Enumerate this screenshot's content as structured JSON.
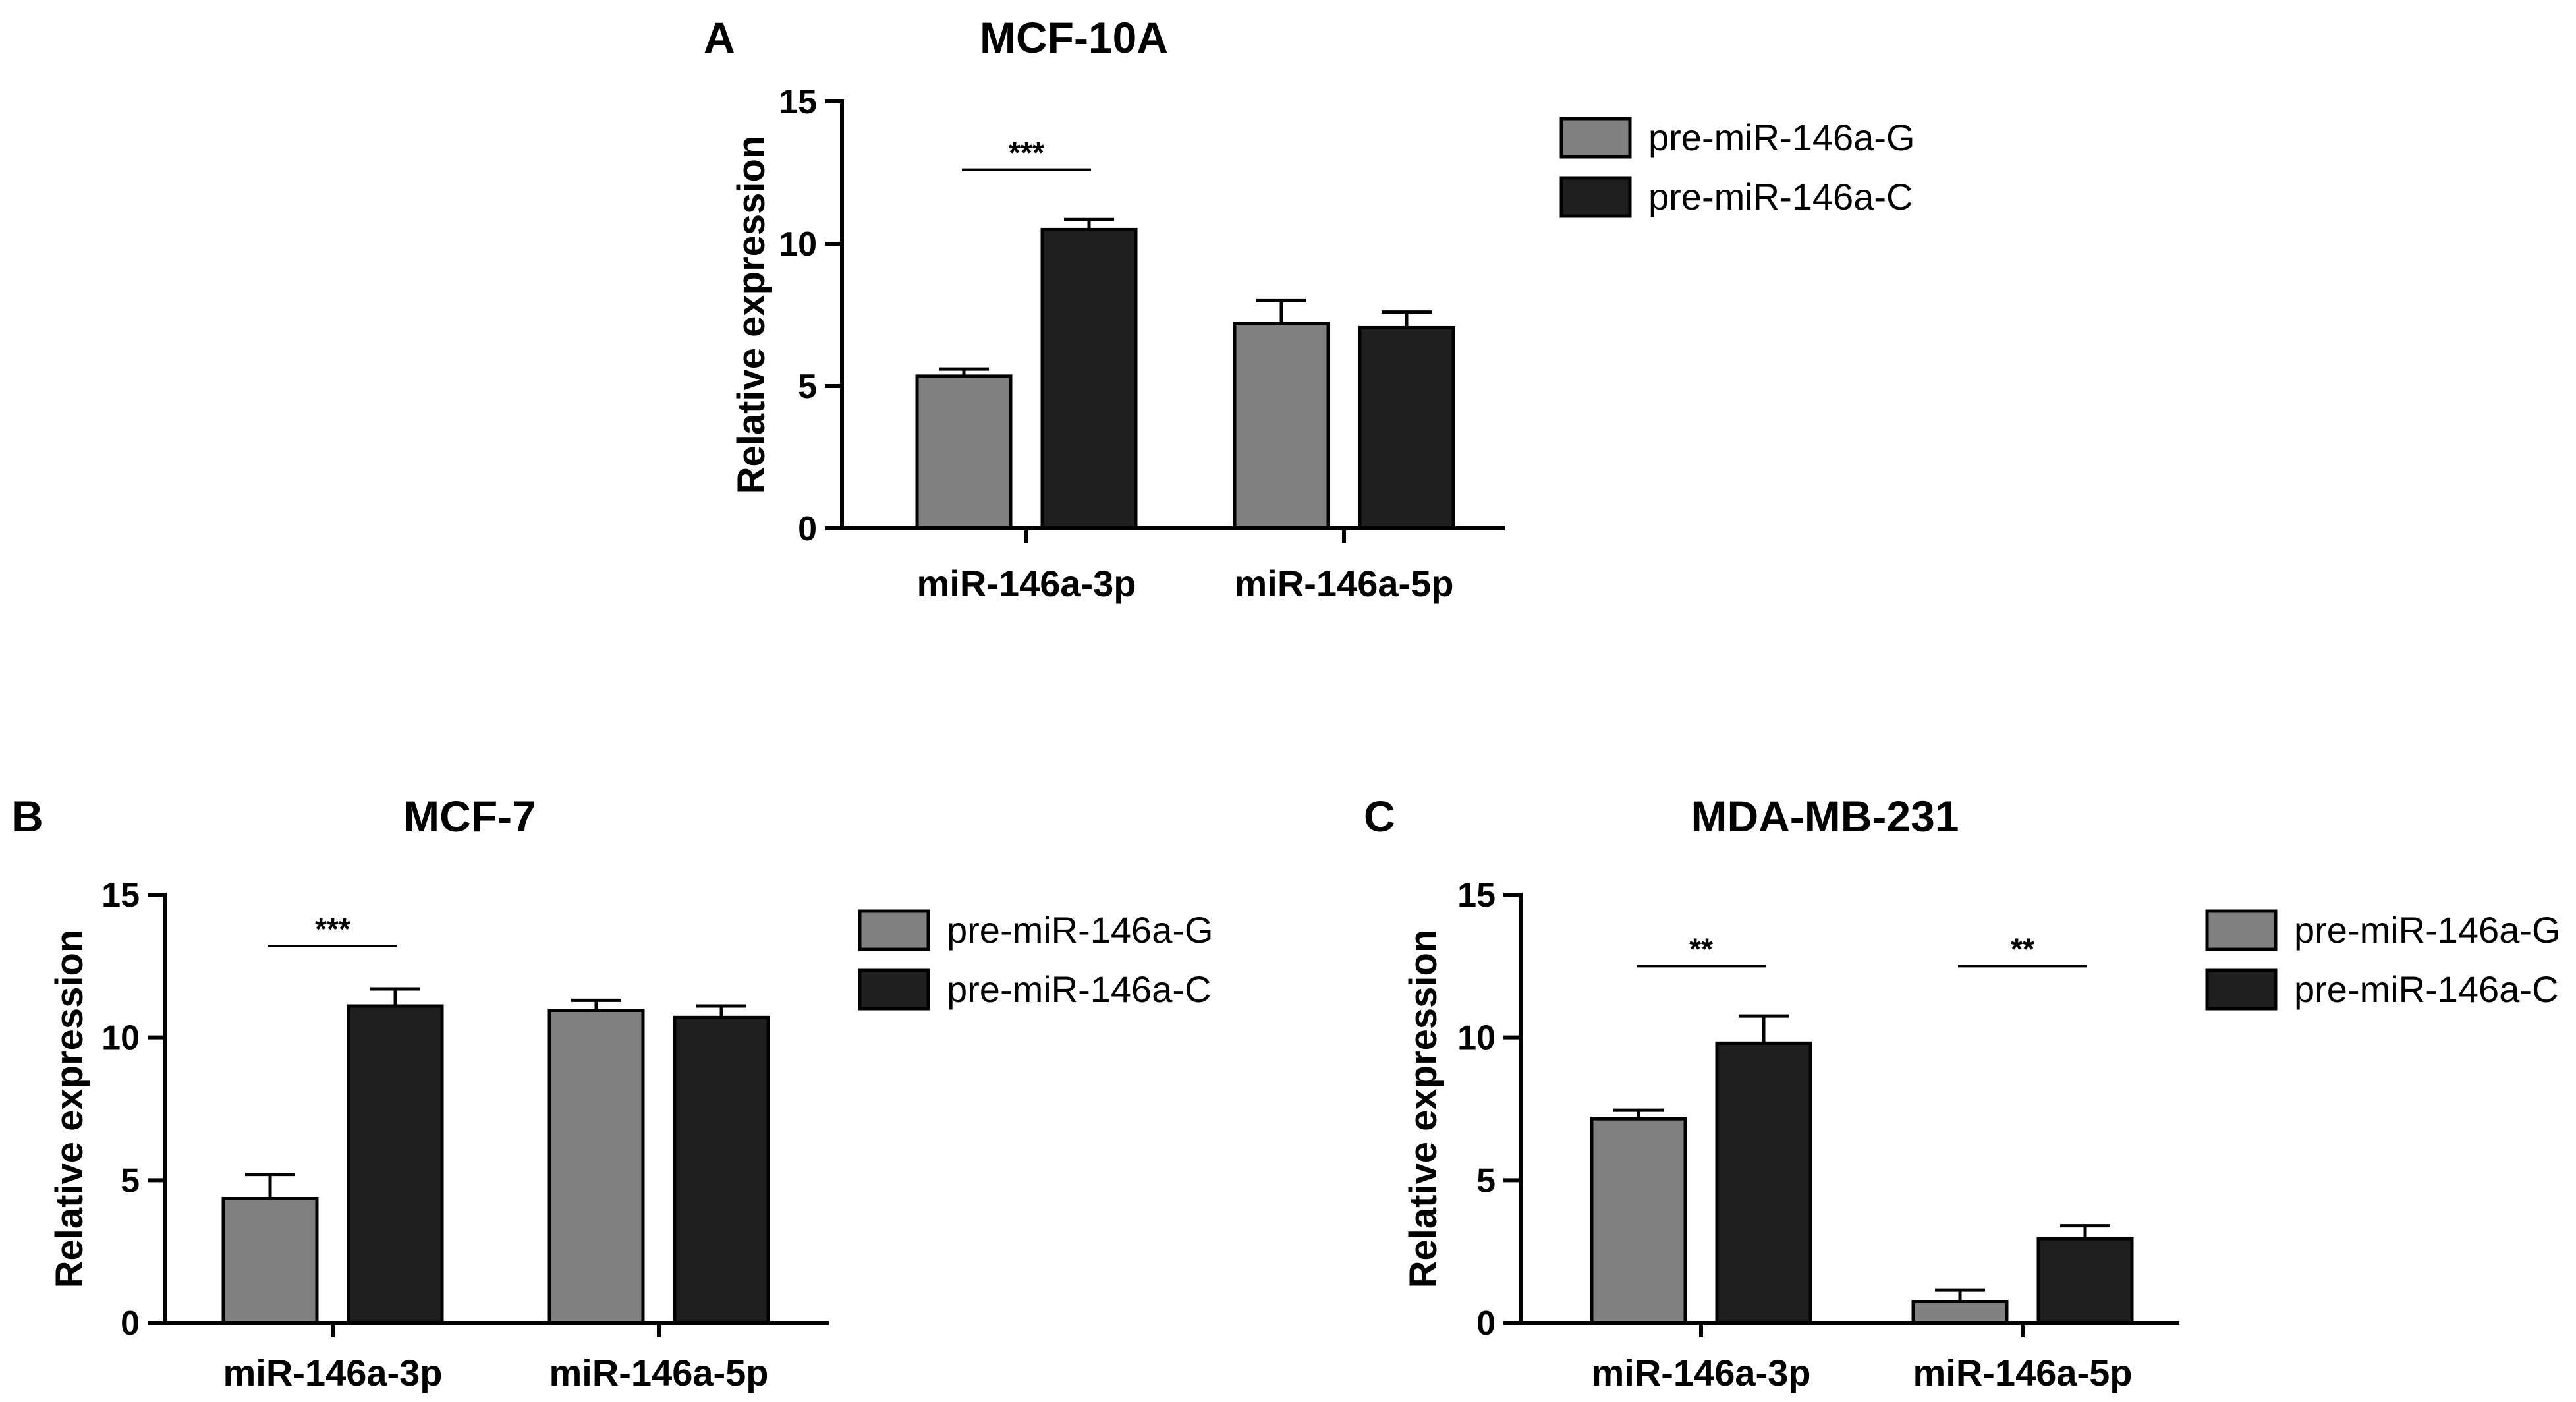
{
  "chart_data": [
    {
      "panel": "A",
      "type": "bar",
      "title": "MCF-10A",
      "xlabel": "",
      "ylabel": "Relative expression",
      "ylim": [
        0,
        15
      ],
      "yticks": [
        0,
        5,
        10,
        15
      ],
      "categories": [
        "miR-146a-3p",
        "miR-146a-5p"
      ],
      "series": [
        {
          "name": "pre-miR-146a-G",
          "color": "#808080",
          "values": [
            5.35,
            7.2
          ],
          "errors": [
            0.25,
            0.8
          ]
        },
        {
          "name": "pre-miR-146a-C",
          "color": "#1f1f1f",
          "values": [
            10.5,
            7.05
          ],
          "errors": [
            0.35,
            0.55
          ]
        }
      ],
      "significance": [
        {
          "category": "miR-146a-3p",
          "label": "***",
          "y": 12.6
        }
      ],
      "legend": "top-right"
    },
    {
      "panel": "B",
      "type": "bar",
      "title": "MCF-7",
      "xlabel": "",
      "ylabel": "Relative expression",
      "ylim": [
        0,
        15
      ],
      "yticks": [
        0,
        5,
        10,
        15
      ],
      "categories": [
        "miR-146a-3p",
        "miR-146a-5p"
      ],
      "series": [
        {
          "name": "pre-miR-146a-G",
          "color": "#808080",
          "values": [
            4.35,
            10.95
          ],
          "errors": [
            0.85,
            0.35
          ]
        },
        {
          "name": "pre-miR-146a-C",
          "color": "#1f1f1f",
          "values": [
            11.1,
            10.7
          ],
          "errors": [
            0.6,
            0.4
          ]
        }
      ],
      "significance": [
        {
          "category": "miR-146a-3p",
          "label": "***",
          "y": 13.2
        }
      ],
      "legend": "top-right"
    },
    {
      "panel": "C",
      "type": "bar",
      "title": "MDA-MB-231",
      "xlabel": "",
      "ylabel": "Relative expression",
      "ylim": [
        0,
        15
      ],
      "yticks": [
        0,
        5,
        10,
        15
      ],
      "categories": [
        "miR-146a-3p",
        "miR-146a-5p"
      ],
      "series": [
        {
          "name": "pre-miR-146a-G",
          "color": "#808080",
          "values": [
            7.15,
            0.75
          ],
          "errors": [
            0.3,
            0.4
          ]
        },
        {
          "name": "pre-miR-146a-C",
          "color": "#1f1f1f",
          "values": [
            9.8,
            2.95
          ],
          "errors": [
            0.95,
            0.45
          ]
        }
      ],
      "significance": [
        {
          "category": "miR-146a-3p",
          "label": "**",
          "y": 12.5
        },
        {
          "category": "miR-146a-5p",
          "label": "**",
          "y": 12.5
        }
      ],
      "legend": "top-right"
    }
  ]
}
